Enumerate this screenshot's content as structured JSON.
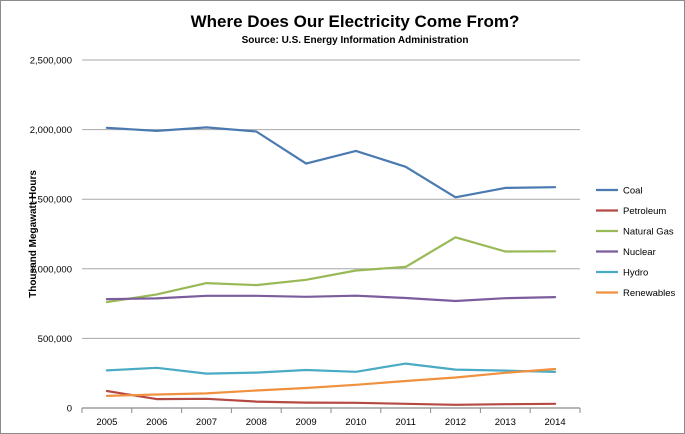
{
  "chart_data": {
    "type": "line",
    "title": "Where Does Our Electricity Come From?",
    "subtitle": "Source: U.S. Energy Information Administration",
    "xlabel": "",
    "ylabel": "Thousand Megawatt Hours",
    "ylim": [
      0,
      2500000
    ],
    "grid": true,
    "legend_position": "right",
    "x": [
      "2005",
      "2006",
      "2007",
      "2008",
      "2009",
      "2010",
      "2011",
      "2012",
      "2013",
      "2014"
    ],
    "yticks": [
      {
        "value": 0,
        "label": "0"
      },
      {
        "value": 500000,
        "label": "500,000"
      },
      {
        "value": 1000000,
        "label": "1,000,000"
      },
      {
        "value": 1500000,
        "label": "1,500,000"
      },
      {
        "value": 2000000,
        "label": "2,000,000"
      },
      {
        "value": 2500000,
        "label": "2,500,000"
      }
    ],
    "series": [
      {
        "name": "Coal",
        "color": "#4a7ab0",
        "values": [
          2013000,
          1991000,
          2016000,
          1986000,
          1756000,
          1847000,
          1733000,
          1514000,
          1581000,
          1586000
        ]
      },
      {
        "name": "Petroleum",
        "color": "#b54a45",
        "values": [
          122000,
          64000,
          66000,
          46000,
          39000,
          37000,
          30000,
          23000,
          27000,
          30000
        ]
      },
      {
        "name": "Natural Gas",
        "color": "#98b955",
        "values": [
          761000,
          816000,
          897000,
          883000,
          921000,
          988000,
          1014000,
          1226000,
          1124000,
          1126000
        ]
      },
      {
        "name": "Nuclear",
        "color": "#7b5c9c",
        "values": [
          782000,
          787000,
          806000,
          806000,
          799000,
          807000,
          790000,
          769000,
          789000,
          797000
        ]
      },
      {
        "name": "Hydro",
        "color": "#4aabc4",
        "values": [
          270000,
          289000,
          247000,
          254000,
          273000,
          260000,
          319000,
          276000,
          269000,
          259000
        ]
      },
      {
        "name": "Renewables",
        "color": "#f0913f",
        "values": [
          87000,
          97000,
          105000,
          126000,
          144000,
          167000,
          194000,
          219000,
          253000,
          280000
        ]
      }
    ]
  }
}
